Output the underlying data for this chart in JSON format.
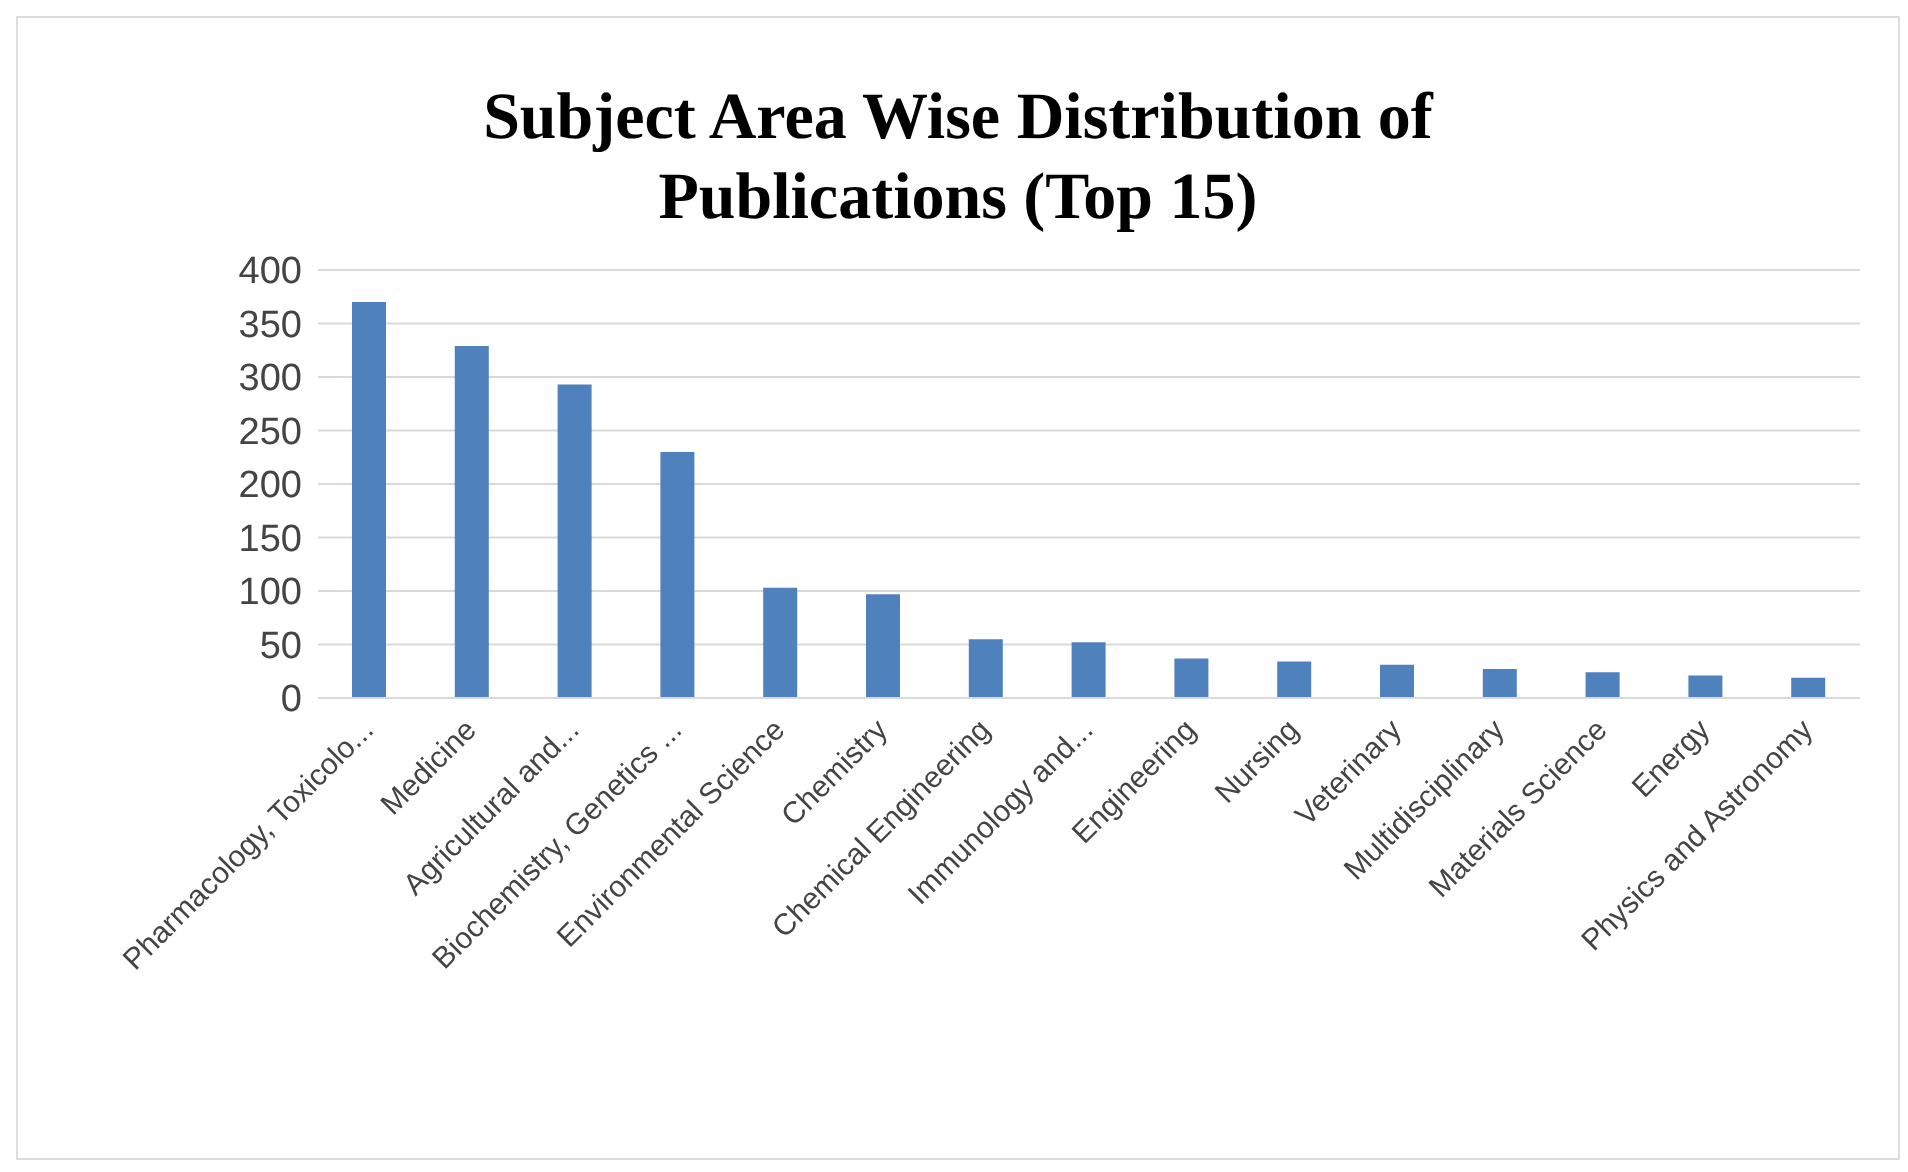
{
  "chart_data": {
    "type": "bar",
    "title": "Subject Area Wise Distribution of Publications (Top 15)",
    "categories": [
      "Pharmacology, Toxicolo...",
      "Medicine",
      "Agricultural and...",
      "Biochemistry, Genetics ...",
      "Environmental Science",
      "Chemistry",
      "Chemical Engineering",
      "Immunology and...",
      "Engineering",
      "Nursing",
      "Veterinary",
      "Multidisciplinary",
      "Materials Science",
      "Energy",
      "Physics and Astronomy"
    ],
    "values": [
      370,
      329,
      293,
      230,
      103,
      97,
      55,
      52,
      37,
      34,
      31,
      27,
      24,
      21,
      19
    ],
    "color": "#4f81bd",
    "ylim": [
      0,
      400
    ],
    "yticks": [
      0,
      50,
      100,
      150,
      200,
      250,
      300,
      350,
      400
    ],
    "grid": "y",
    "legend": false
  }
}
